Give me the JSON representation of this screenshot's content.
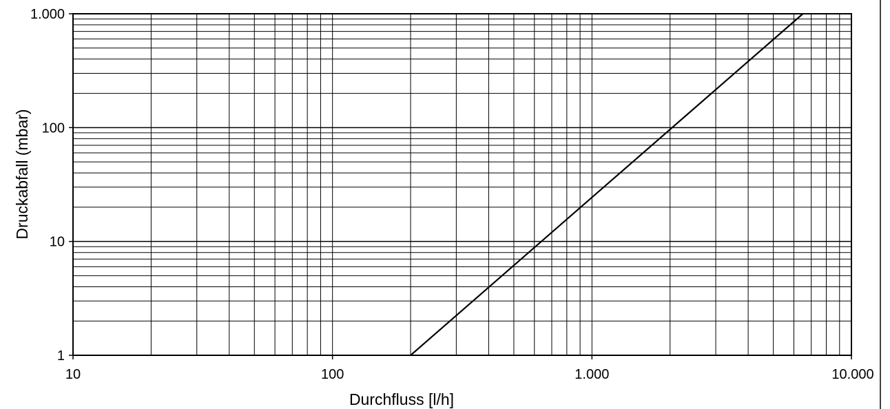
{
  "chart_data": {
    "type": "line",
    "title": "",
    "xlabel": "Durchfluss [l/h]",
    "ylabel": "Druckabfall  (mbar)",
    "xscale": "log",
    "yscale": "log",
    "xlim": [
      10,
      10000
    ],
    "ylim": [
      1,
      1000
    ],
    "grid": true,
    "legend": "none",
    "x_ticks": [
      {
        "value": 10,
        "label": "10"
      },
      {
        "value": 100,
        "label": "100"
      },
      {
        "value": 1000,
        "label": "1.000"
      },
      {
        "value": 10000,
        "label": "10.000"
      }
    ],
    "y_ticks": [
      {
        "value": 1,
        "label": "1"
      },
      {
        "value": 10,
        "label": "10"
      },
      {
        "value": 100,
        "label": "100"
      },
      {
        "value": 1000,
        "label": "1.000"
      }
    ],
    "series": [
      {
        "x": [
          200,
          6500
        ],
        "y": [
          1,
          1000
        ]
      }
    ],
    "colors": {
      "line": "#000000",
      "grid": "#000000",
      "frame": "#000000",
      "background": "#ffffff"
    }
  }
}
